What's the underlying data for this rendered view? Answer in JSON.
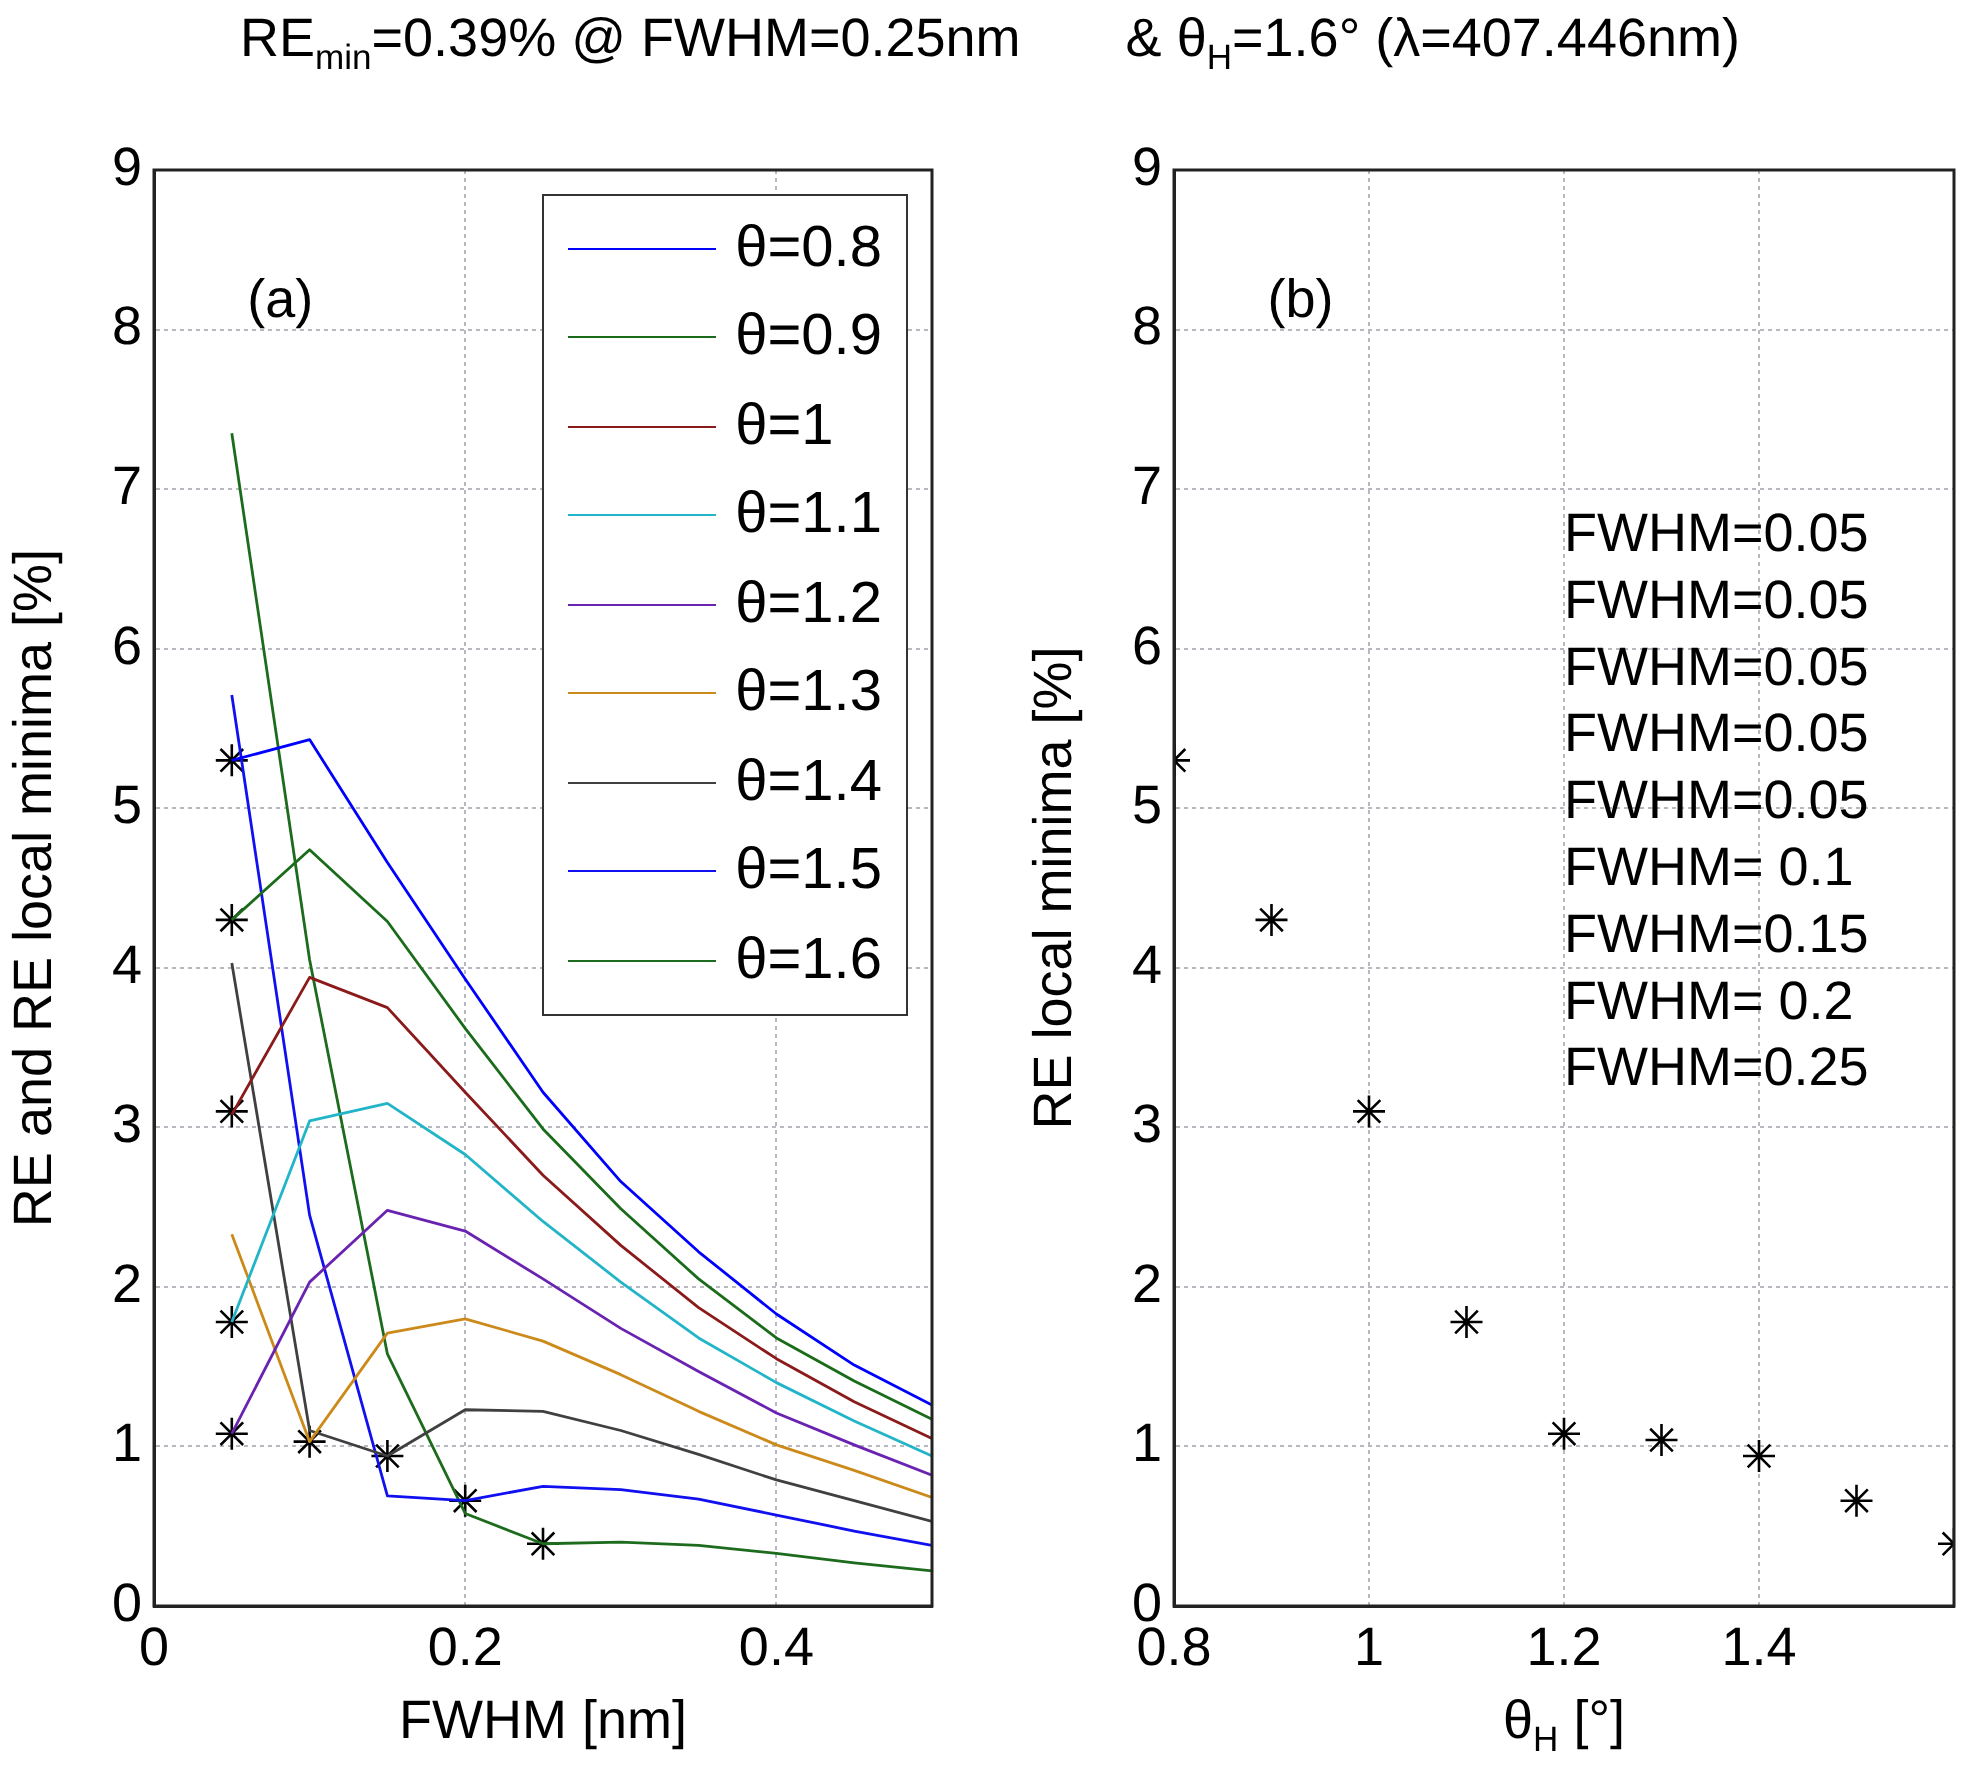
{
  "chart_data": [
    {
      "type": "line",
      "title": "RE$_{min}$=0.39% @ FWHM=0.25nm       & θ$_{H}$=1.6° (λ=407.446nm)",
      "xlabel": "FWHM [nm]",
      "ylabel": "RE and RE local minima [%]",
      "annotations": [
        "(a)"
      ],
      "x": [
        0.05,
        0.1,
        0.15,
        0.2,
        0.25,
        0.3,
        0.35,
        0.4,
        0.45,
        0.5
      ],
      "series": [
        {
          "name": "θ=0.8",
          "color": "#0000ff",
          "values": [
            5.3,
            5.43,
            4.66,
            3.93,
            3.22,
            2.66,
            2.22,
            1.83,
            1.51,
            1.26
          ]
        },
        {
          "name": "θ=0.9",
          "color": "#1a6b1a",
          "values": [
            4.3,
            4.74,
            4.29,
            3.62,
            2.99,
            2.49,
            2.05,
            1.68,
            1.41,
            1.17
          ]
        },
        {
          "name": "θ=1",
          "color": "#8b1a1a",
          "values": [
            3.08,
            3.94,
            3.75,
            3.22,
            2.7,
            2.26,
            1.87,
            1.55,
            1.28,
            1.05
          ]
        },
        {
          "name": "θ=1.1",
          "color": "#22b5c8",
          "values": [
            1.78,
            3.04,
            3.15,
            2.83,
            2.41,
            2.03,
            1.68,
            1.4,
            1.16,
            0.94
          ]
        },
        {
          "name": "θ=1.2",
          "color": "#6a22b0",
          "values": [
            1.08,
            2.03,
            2.48,
            2.35,
            2.05,
            1.74,
            1.47,
            1.21,
            1.01,
            0.82
          ]
        },
        {
          "name": "θ=1.3",
          "color": "#cc8a1a",
          "values": [
            2.33,
            1.03,
            1.71,
            1.8,
            1.66,
            1.45,
            1.22,
            1.01,
            0.85,
            0.68
          ]
        },
        {
          "name": "θ=1.4",
          "color": "#404040",
          "values": [
            4.03,
            1.1,
            0.94,
            1.23,
            1.22,
            1.1,
            0.95,
            0.79,
            0.66,
            0.53
          ]
        },
        {
          "name": "θ=1.5",
          "color": "#1010f0",
          "values": [
            5.71,
            2.45,
            0.69,
            0.66,
            0.75,
            0.73,
            0.67,
            0.57,
            0.47,
            0.38
          ]
        },
        {
          "name": "θ=1.6",
          "color": "#1d6b1d",
          "values": [
            7.35,
            4.05,
            1.58,
            0.58,
            0.39,
            0.4,
            0.38,
            0.33,
            0.27,
            0.22
          ]
        },
        {
          "type": "scatter",
          "marker": "cross",
          "color": "#000000",
          "x": [
            0.05,
            0.05,
            0.05,
            0.05,
            0.05,
            0.1,
            0.15,
            0.2,
            0.25
          ],
          "values": [
            5.3,
            4.3,
            3.1,
            1.78,
            1.08,
            1.03,
            0.94,
            0.66,
            0.39
          ]
        }
      ],
      "marker": "none",
      "xlim": [
        0,
        0.5
      ],
      "xticks": [
        0,
        0.2,
        0.4
      ],
      "ylim": [
        0,
        9
      ],
      "yticks": [
        0,
        1,
        2,
        3,
        4,
        5,
        6,
        7,
        8,
        9
      ],
      "grid": true,
      "legend": "top right"
    },
    {
      "type": "scatter",
      "xlabel": "θ$_{H}$ [°]",
      "ylabel": "RE local minima [%]",
      "annotations": [
        "(b)",
        "FWHM=0.05",
        "FWHM=0.05",
        "FWHM=0.05",
        "FWHM=0.05",
        "FWHM=0.05",
        "FWHM= 0.1",
        "FWHM=0.15",
        "FWHM= 0.2",
        "FWHM=0.25"
      ],
      "x": [
        0.8,
        0.9,
        1,
        1.1,
        1.2,
        1.3,
        1.4,
        1.5,
        1.6
      ],
      "series": [
        {
          "color": "#000000",
          "values": [
            5.3,
            4.3,
            3.1,
            1.78,
            1.08,
            1.04,
            0.94,
            0.66,
            0.39
          ]
        }
      ],
      "marker": "cross",
      "xlim": [
        0.8,
        1.6
      ],
      "xticks": [
        0.8,
        1,
        1.2,
        1.4
      ],
      "ylim": [
        0,
        9
      ],
      "yticks": [
        0,
        1,
        2,
        3,
        4,
        5,
        6,
        7,
        8,
        9
      ],
      "grid": true
    }
  ]
}
